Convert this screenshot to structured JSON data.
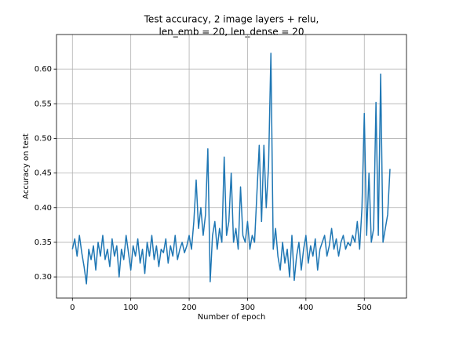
{
  "chart_data": {
    "type": "line",
    "title": [
      "Test accuracy, 2 image layers + relu,",
      "len_emb = 20, len_dense = 20"
    ],
    "x_label": "Number of epoch",
    "y_label": "Accuracy on test",
    "x": [
      0,
      4,
      8,
      12,
      16,
      20,
      24,
      28,
      32,
      36,
      40,
      44,
      48,
      52,
      56,
      60,
      64,
      68,
      72,
      76,
      80,
      84,
      88,
      92,
      96,
      100,
      104,
      108,
      112,
      116,
      120,
      124,
      128,
      132,
      136,
      140,
      144,
      148,
      152,
      156,
      160,
      164,
      168,
      172,
      176,
      180,
      184,
      188,
      192,
      196,
      200,
      204,
      208,
      212,
      216,
      220,
      224,
      228,
      232,
      236,
      240,
      244,
      248,
      252,
      256,
      260,
      264,
      268,
      272,
      276,
      280,
      284,
      288,
      292,
      296,
      300,
      304,
      308,
      312,
      316,
      320,
      324,
      328,
      332,
      336,
      340,
      344,
      348,
      352,
      356,
      360,
      364,
      368,
      372,
      376,
      380,
      384,
      388,
      392,
      396,
      400,
      404,
      408,
      412,
      416,
      420,
      424,
      428,
      432,
      436,
      440,
      444,
      448,
      452,
      456,
      460,
      464,
      468,
      472,
      476,
      480,
      484,
      488,
      492,
      496,
      500,
      504,
      508,
      512,
      516,
      520,
      524,
      528,
      532,
      536,
      540,
      544
    ],
    "series": [
      {
        "name": "accuracy",
        "color": "#1f77b4",
        "values": [
          0.34,
          0.355,
          0.33,
          0.36,
          0.335,
          0.315,
          0.29,
          0.34,
          0.325,
          0.345,
          0.31,
          0.35,
          0.33,
          0.36,
          0.325,
          0.34,
          0.315,
          0.355,
          0.33,
          0.345,
          0.3,
          0.34,
          0.325,
          0.36,
          0.335,
          0.31,
          0.345,
          0.33,
          0.355,
          0.32,
          0.34,
          0.305,
          0.35,
          0.33,
          0.36,
          0.325,
          0.345,
          0.315,
          0.34,
          0.335,
          0.355,
          0.32,
          0.345,
          0.33,
          0.36,
          0.325,
          0.34,
          0.35,
          0.335,
          0.345,
          0.36,
          0.34,
          0.38,
          0.44,
          0.37,
          0.4,
          0.36,
          0.39,
          0.485,
          0.293,
          0.36,
          0.38,
          0.34,
          0.37,
          0.35,
          0.473,
          0.36,
          0.38,
          0.45,
          0.35,
          0.37,
          0.34,
          0.43,
          0.36,
          0.35,
          0.38,
          0.34,
          0.36,
          0.35,
          0.42,
          0.49,
          0.38,
          0.49,
          0.4,
          0.46,
          0.623,
          0.34,
          0.37,
          0.33,
          0.31,
          0.35,
          0.32,
          0.34,
          0.3,
          0.36,
          0.295,
          0.33,
          0.35,
          0.31,
          0.34,
          0.36,
          0.32,
          0.345,
          0.33,
          0.355,
          0.31,
          0.34,
          0.35,
          0.36,
          0.33,
          0.345,
          0.37,
          0.34,
          0.355,
          0.33,
          0.35,
          0.36,
          0.34,
          0.35,
          0.345,
          0.36,
          0.35,
          0.38,
          0.34,
          0.4,
          0.536,
          0.36,
          0.45,
          0.35,
          0.37,
          0.552,
          0.36,
          0.593,
          0.35,
          0.37,
          0.39,
          0.456
        ]
      }
    ],
    "xlim": [
      -27.25,
      572.25
    ],
    "xticks": [
      0,
      100,
      200,
      300,
      400,
      500
    ],
    "ylim": [
      0.2695,
      0.65
    ],
    "yticks": [
      {
        "value": 0.3,
        "label": "0.30"
      },
      {
        "value": 0.35,
        "label": "0.35"
      },
      {
        "value": 0.4,
        "label": "0.40"
      },
      {
        "value": 0.45,
        "label": "0.45"
      },
      {
        "value": 0.5,
        "label": "0.50"
      },
      {
        "value": 0.55,
        "label": "0.55"
      },
      {
        "value": 0.6,
        "label": "0.60"
      }
    ],
    "grid": true
  }
}
